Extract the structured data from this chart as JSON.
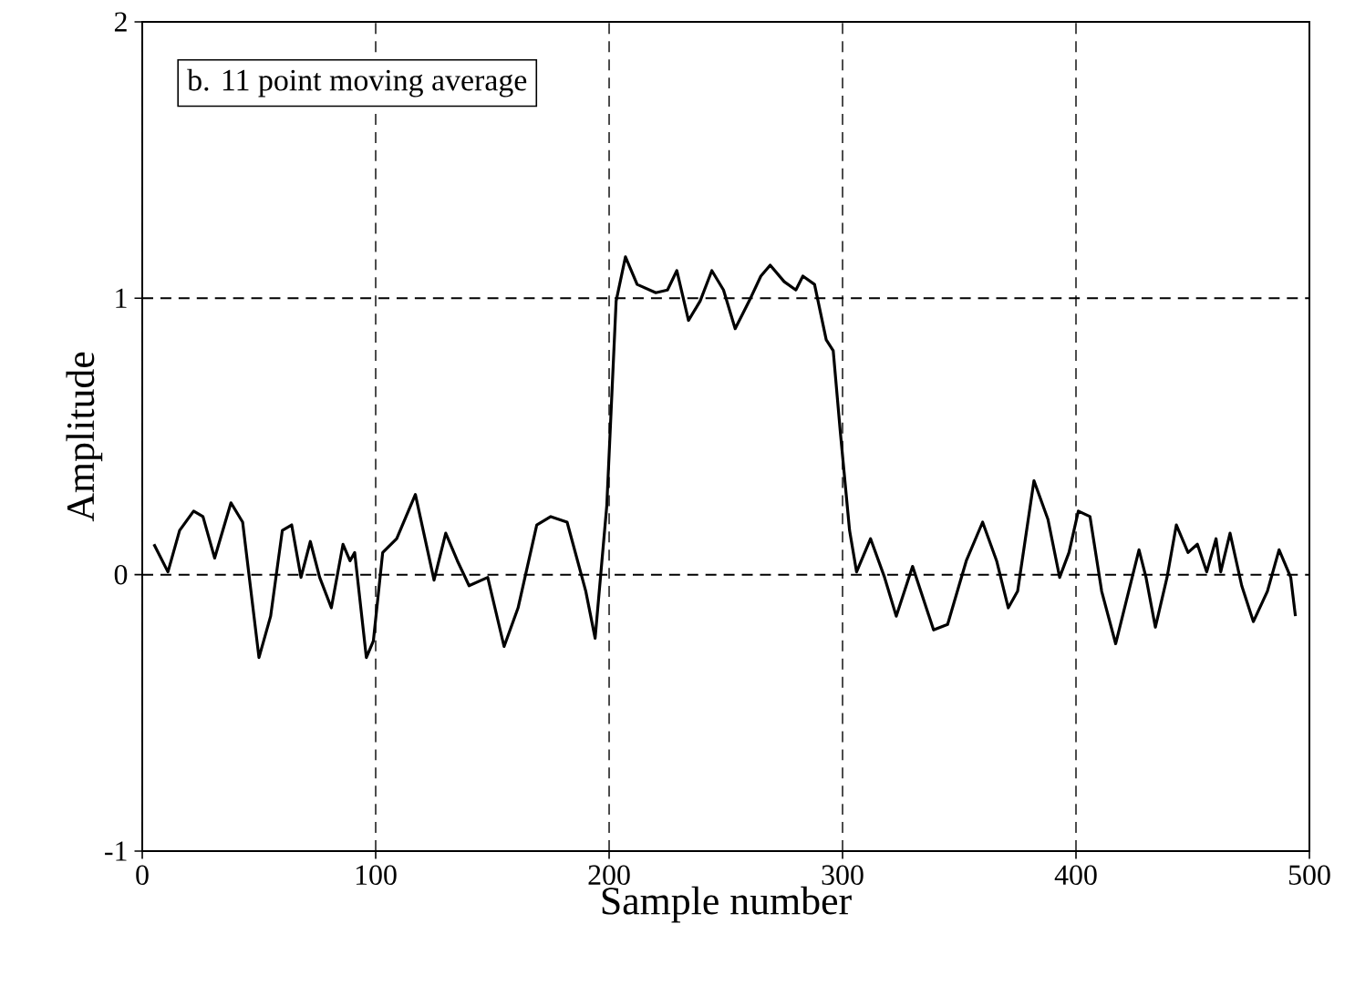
{
  "chart_data": {
    "type": "line",
    "xlabel": "Sample number",
    "ylabel": "Amplitude",
    "annotations": [
      "b.  11 point moving average"
    ],
    "xlim": [
      0,
      500
    ],
    "ylim": [
      -1,
      2
    ],
    "xticks": [
      0,
      100,
      200,
      300,
      400,
      500
    ],
    "yticks": [
      -1,
      0,
      1,
      2
    ],
    "grid": true,
    "line_style": "solid",
    "marker": "none",
    "series": [
      {
        "color": "#000000",
        "x": [
          5,
          11,
          16,
          22,
          26,
          31,
          38,
          43,
          50,
          55,
          60,
          64,
          68,
          72,
          76,
          81,
          86,
          89,
          91,
          96,
          99,
          103,
          109,
          117,
          125,
          130,
          135,
          140,
          148,
          155,
          161,
          169,
          175,
          182,
          190,
          194,
          199,
          203,
          207,
          212,
          220,
          225,
          229,
          234,
          239,
          244,
          249,
          254,
          260,
          265,
          269,
          275,
          280,
          283,
          288,
          293,
          296,
          299,
          303,
          306,
          312,
          318,
          323,
          330,
          339,
          345,
          353,
          360,
          366,
          371,
          375,
          382,
          388,
          393,
          397,
          401,
          406,
          411,
          417,
          422,
          427,
          430,
          434,
          439,
          443,
          448,
          452,
          456,
          460,
          462,
          466,
          471,
          476,
          482,
          487,
          492,
          494
        ],
        "values": [
          0.11,
          0.01,
          0.16,
          0.23,
          0.21,
          0.06,
          0.26,
          0.19,
          -0.3,
          -0.15,
          0.16,
          0.18,
          -0.01,
          0.12,
          -0.01,
          -0.12,
          0.11,
          0.05,
          0.08,
          -0.3,
          -0.24,
          0.08,
          0.13,
          0.29,
          -0.02,
          0.15,
          0.05,
          -0.04,
          -0.01,
          -0.26,
          -0.12,
          0.18,
          0.21,
          0.19,
          -0.06,
          -0.23,
          0.25,
          0.99,
          1.15,
          1.05,
          1.02,
          1.03,
          1.1,
          0.92,
          0.99,
          1.1,
          1.03,
          0.89,
          0.99,
          1.08,
          1.12,
          1.06,
          1.03,
          1.08,
          1.05,
          0.85,
          0.81,
          0.52,
          0.16,
          0.01,
          0.13,
          -0.01,
          -0.15,
          0.03,
          -0.2,
          -0.18,
          0.05,
          0.19,
          0.05,
          -0.12,
          -0.06,
          0.34,
          0.2,
          -0.01,
          0.08,
          0.23,
          0.21,
          -0.06,
          -0.25,
          -0.08,
          0.09,
          -0.01,
          -0.19,
          -0.01,
          0.18,
          0.08,
          0.11,
          0.01,
          0.13,
          0.01,
          0.15,
          -0.04,
          -0.17,
          -0.06,
          0.09,
          -0.01,
          -0.15
        ]
      }
    ]
  }
}
